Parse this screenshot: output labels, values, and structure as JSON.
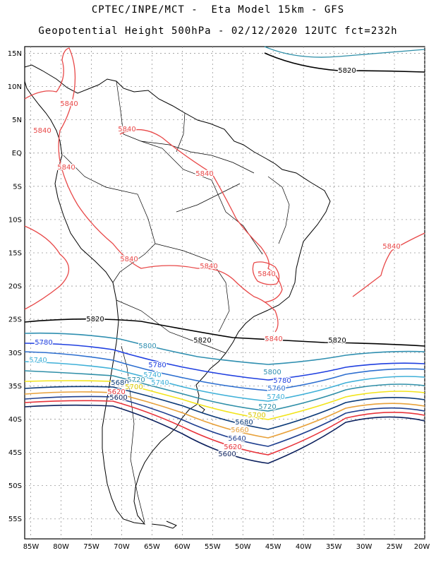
{
  "header": {
    "line1": "CPTEC/INPE/MCT -  Eta Model 15km - GFS",
    "line2": "Geopotential Height 500hPa - 02/12/2020 12UTC fct=232h"
  },
  "axes": {
    "lat_labels": [
      "15N",
      "10N",
      "5N",
      "EQ",
      "5S",
      "10S",
      "15S",
      "20S",
      "25S",
      "30S",
      "35S",
      "40S",
      "45S",
      "50S",
      "55S"
    ],
    "lon_labels": [
      "85W",
      "80W",
      "75W",
      "70W",
      "65W",
      "60W",
      "55W",
      "50W",
      "45W",
      "40W",
      "35W",
      "30W",
      "25W",
      "20W"
    ],
    "lat_range": [
      -58,
      16
    ],
    "lon_range": [
      -86,
      -20
    ],
    "grid": true
  },
  "contour_colors": {
    "5600": "#0a1f5c",
    "5620": "#e8333a",
    "5640": "#1f3f8f",
    "5660": "#e8a13a",
    "5680": "#0b3a78",
    "5700": "#f2e41a",
    "5720": "#2f8fa8",
    "5740": "#3fb0d8",
    "5760": "#2d6fd0",
    "5780": "#1f3fe0",
    "5800": "#2f8fb0",
    "5820": "#000000",
    "5840": "#e84848"
  },
  "contour_labels": [
    {
      "text": "5820",
      "color": "5820"
    },
    {
      "text": "5820",
      "color": "5820"
    },
    {
      "text": "5820",
      "color": "5820"
    },
    {
      "text": "5820",
      "color": "5820"
    },
    {
      "text": "5840",
      "color": "5840"
    },
    {
      "text": "5840",
      "color": "5840"
    },
    {
      "text": "5840",
      "color": "5840"
    },
    {
      "text": "5840",
      "color": "5840"
    },
    {
      "text": "5840",
      "color": "5840"
    },
    {
      "text": "5840",
      "color": "5840"
    },
    {
      "text": "5840",
      "color": "5840"
    },
    {
      "text": "5840",
      "color": "5840"
    },
    {
      "text": "5840",
      "color": "5840"
    },
    {
      "text": "5840",
      "color": "5840"
    },
    {
      "text": "5780",
      "color": "5780"
    },
    {
      "text": "5740",
      "color": "5740"
    },
    {
      "text": "5800",
      "color": "5800"
    },
    {
      "text": "5780",
      "color": "5780"
    },
    {
      "text": "5740",
      "color": "5740"
    },
    {
      "text": "5720",
      "color": "5720"
    },
    {
      "text": "5740",
      "color": "5740"
    },
    {
      "text": "5680",
      "color": "5680"
    },
    {
      "text": "5700",
      "color": "5700"
    },
    {
      "text": "5620",
      "color": "5620"
    },
    {
      "text": "5600",
      "color": "5600"
    },
    {
      "text": "5800",
      "color": "5800"
    },
    {
      "text": "5780",
      "color": "5780"
    },
    {
      "text": "5760",
      "color": "5760"
    },
    {
      "text": "5740",
      "color": "5740"
    },
    {
      "text": "5720",
      "color": "5720"
    },
    {
      "text": "5700",
      "color": "5700"
    },
    {
      "text": "5680",
      "color": "5680"
    },
    {
      "text": "5660",
      "color": "5660"
    },
    {
      "text": "5640",
      "color": "5640"
    },
    {
      "text": "5620",
      "color": "5620"
    },
    {
      "text": "5600",
      "color": "5600"
    }
  ]
}
